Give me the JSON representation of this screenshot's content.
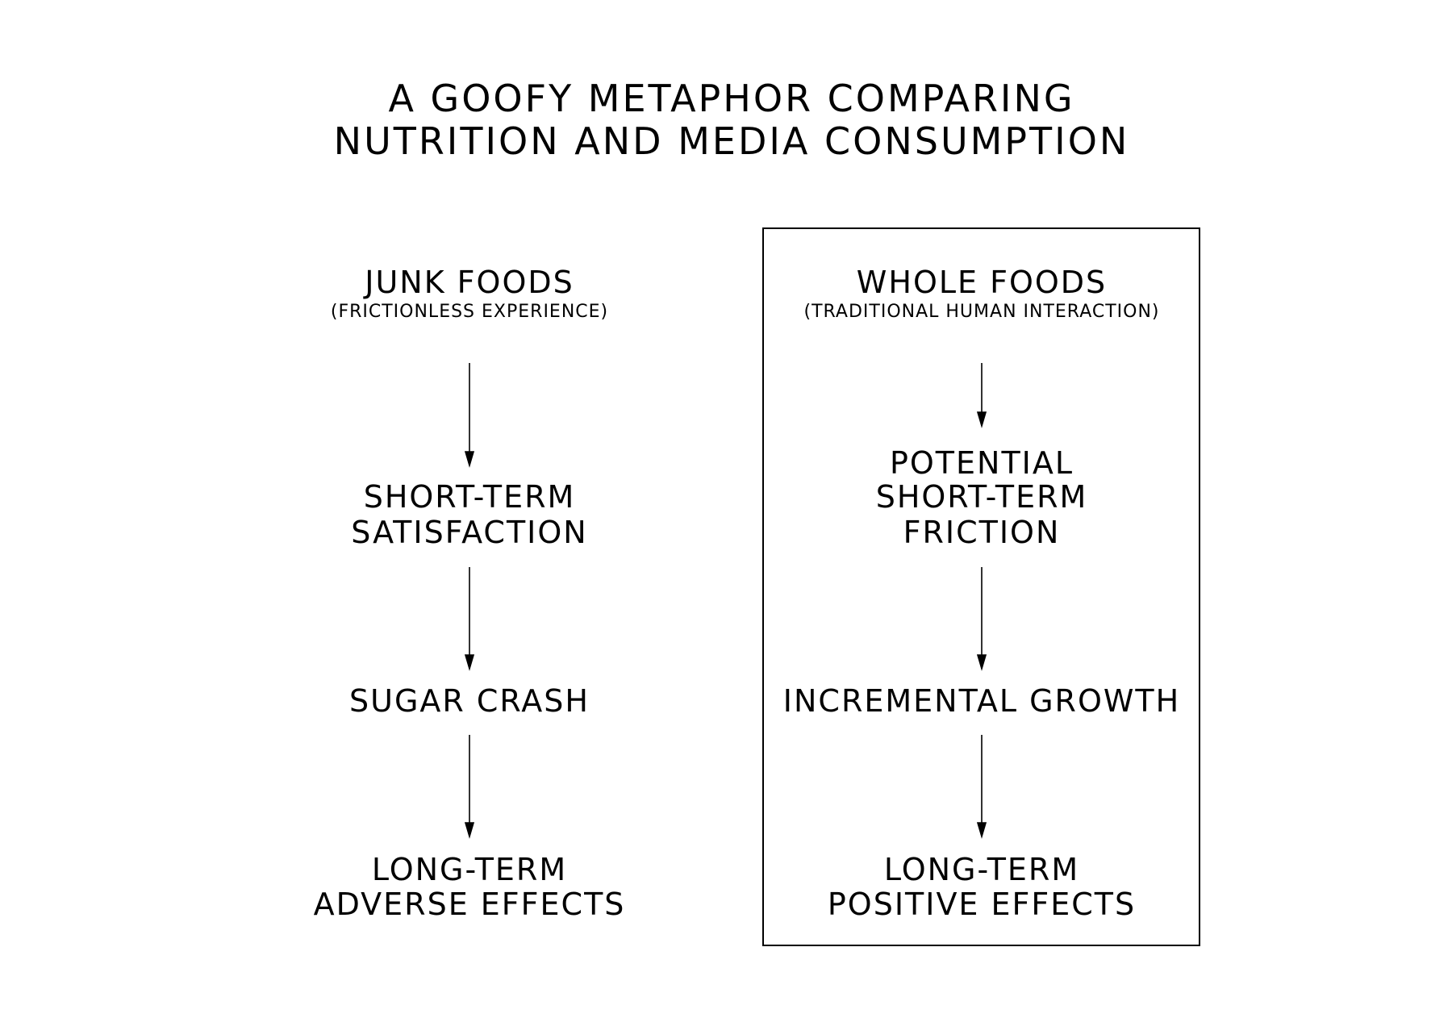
{
  "title": {
    "line1": "A GOOFY METAPHOR COMPARING",
    "line2": "NUTRITION AND MEDIA CONSUMPTION"
  },
  "left": {
    "heading": "JUNK FOODS",
    "subheading": "(FRICTIONLESS EXPERIENCE)",
    "steps": [
      [
        "SHORT-TERM",
        "SATISFACTION"
      ],
      [
        "SUGAR CRASH"
      ],
      [
        "LONG-TERM",
        "ADVERSE EFFECTS"
      ]
    ]
  },
  "right": {
    "heading": "WHOLE FOODS",
    "subheading": "(TRADITIONAL HUMAN INTERACTION)",
    "steps": [
      [
        "POTENTIAL",
        "SHORT-TERM",
        "FRICTION"
      ],
      [
        "INCREMENTAL GROWTH"
      ],
      [
        "LONG-TERM",
        "POSITIVE EFFECTS"
      ]
    ]
  }
}
